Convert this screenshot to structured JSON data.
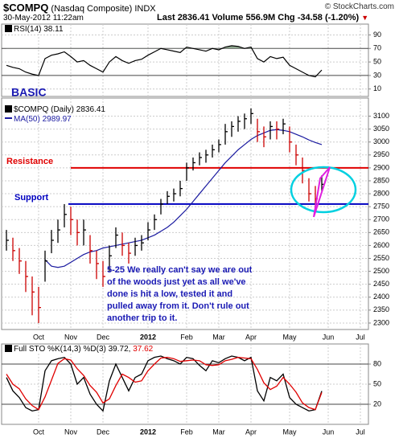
{
  "header": {
    "symbol": "$COMPQ",
    "name": "(Nasdaq Composite)",
    "exchange": "INDX",
    "date": "30-May-2012 11:22am",
    "last_label": "Last",
    "volume_label": "Volume",
    "volume": "556.9M",
    "chg_label": "Chg",
    "chg": "-34.58 (-1.20%)",
    "copyright": "© StockCharts.com"
  },
  "chart_data": [
    {
      "type": "rsi",
      "name": "RSI(14)",
      "color": "#000000",
      "fill_color": "#8fa88f",
      "values": [
        45,
        42,
        40,
        35,
        32,
        30,
        55,
        60,
        62,
        65,
        58,
        50,
        52,
        45,
        40,
        35,
        50,
        58,
        52,
        48,
        52,
        54,
        60,
        65,
        70,
        68,
        66,
        64,
        72,
        70,
        68,
        66,
        70,
        68,
        72,
        74,
        73,
        70,
        72,
        55,
        50,
        58,
        55,
        57,
        45,
        40,
        35,
        30,
        28,
        38.11,
        null,
        null,
        null,
        null,
        null,
        null
      ],
      "ylim": [
        -1,
        106
      ],
      "yticks": [
        90,
        70,
        50,
        30,
        10
      ],
      "overbought": 70,
      "oversold": 30
    },
    {
      "type": "ohlc",
      "title": "BASIC",
      "name": "$COMPQ (Daily)",
      "categories": [
        null,
        null,
        null,
        null,
        null,
        "Oct",
        null,
        null,
        null,
        null,
        "Nov",
        null,
        null,
        null,
        null,
        "Dec",
        null,
        null,
        null,
        null,
        null,
        null,
        "2012",
        null,
        null,
        null,
        null,
        null,
        "Feb",
        null,
        null,
        null,
        null,
        "Mar",
        null,
        null,
        null,
        null,
        "Apr",
        null,
        null,
        null,
        null,
        null,
        "May",
        null,
        null,
        null,
        null,
        null,
        "Jun",
        null,
        null,
        null,
        null,
        "Jul"
      ],
      "high": [
        2660,
        2630,
        2590,
        2540,
        2480,
        2440,
        2580,
        2660,
        2700,
        2760,
        2750,
        2700,
        2700,
        2640,
        2580,
        2540,
        2600,
        2670,
        2650,
        2610,
        2630,
        2640,
        2690,
        2720,
        2780,
        2810,
        2820,
        2850,
        2920,
        2940,
        2960,
        2970,
        2990,
        3010,
        3070,
        3080,
        3100,
        3110,
        3130,
        3090,
        3060,
        3080,
        3080,
        3090,
        3060,
        2990,
        2940,
        2860,
        2830,
        2871,
        null,
        null,
        null,
        null,
        null,
        null
      ],
      "low": [
        2580,
        2540,
        2490,
        2420,
        2330,
        2300,
        2460,
        2570,
        2610,
        2670,
        2640,
        2600,
        2600,
        2530,
        2470,
        2440,
        2500,
        2590,
        2560,
        2530,
        2560,
        2580,
        2620,
        2660,
        2720,
        2760,
        2770,
        2790,
        2850,
        2890,
        2910,
        2920,
        2940,
        2960,
        2990,
        3020,
        3040,
        3050,
        3070,
        3000,
        2980,
        3010,
        3010,
        3030,
        2960,
        2910,
        2840,
        2770,
        2750,
        2810,
        null,
        null,
        null,
        null,
        null,
        null
      ],
      "close": [
        2620,
        2580,
        2540,
        2480,
        2420,
        2360,
        2540,
        2620,
        2660,
        2720,
        2700,
        2650,
        2660,
        2580,
        2530,
        2480,
        2560,
        2640,
        2600,
        2570,
        2600,
        2610,
        2660,
        2700,
        2760,
        2790,
        2800,
        2820,
        2900,
        2920,
        2940,
        2950,
        2970,
        2990,
        3040,
        3060,
        3080,
        3090,
        3110,
        3040,
        3020,
        3060,
        3050,
        3070,
        3000,
        2950,
        2890,
        2800,
        2780,
        2836.41,
        null,
        null,
        null,
        null,
        null,
        null
      ],
      "up_color": "#000000",
      "down_color": "#cc0000",
      "ma": {
        "name": "MA(50)",
        "color": "#1a1aa0",
        "values": [
          null,
          null,
          null,
          null,
          null,
          null,
          2545,
          2520,
          2515,
          2520,
          2535,
          2550,
          2565,
          2575,
          2580,
          2590,
          2595,
          2600,
          2605,
          2610,
          2615,
          2620,
          2630,
          2640,
          2655,
          2670,
          2690,
          2715,
          2740,
          2770,
          2800,
          2830,
          2860,
          2890,
          2920,
          2945,
          2970,
          2990,
          3010,
          3025,
          3035,
          3045,
          3048,
          3045,
          3040,
          3030,
          3020,
          3008,
          2998,
          2989.97,
          null,
          null,
          null,
          null,
          null,
          null
        ]
      },
      "ylim": [
        2275,
        3170
      ],
      "yticks": [
        2300,
        2350,
        2400,
        2450,
        2500,
        2550,
        2600,
        2650,
        2700,
        2750,
        2800,
        2850,
        2900,
        2950,
        3000,
        3050,
        3100
      ],
      "grid": true,
      "levels": [
        {
          "name": "Resistance",
          "value": 2900,
          "color": "#e00000"
        },
        {
          "name": "Support",
          "value": 2760,
          "color": "#0000c0"
        }
      ],
      "annotation": "5-25 We really can't say we are out of the woods just yet as all we've done is hit a low, tested it and pulled away from it. Don't rule out another trip to it."
    },
    {
      "type": "line",
      "name": "Full STO %K(14,3) %D(3)",
      "categories": [
        null,
        null,
        null,
        null,
        null,
        "Oct",
        null,
        null,
        null,
        null,
        "Nov",
        null,
        null,
        null,
        null,
        "Dec",
        null,
        null,
        null,
        null,
        null,
        null,
        "2012",
        null,
        null,
        null,
        null,
        null,
        "Feb",
        null,
        null,
        null,
        null,
        "Mar",
        null,
        null,
        null,
        null,
        "Apr",
        null,
        null,
        null,
        null,
        null,
        "May",
        null,
        null,
        null,
        null,
        null,
        "Jun",
        null,
        null,
        null,
        null,
        "Jul"
      ],
      "series": [
        {
          "color": "#000000",
          "values": [
            60,
            40,
            30,
            15,
            10,
            12,
            70,
            85,
            88,
            90,
            80,
            50,
            60,
            35,
            20,
            10,
            55,
            80,
            60,
            40,
            60,
            65,
            85,
            90,
            92,
            88,
            85,
            80,
            90,
            88,
            78,
            70,
            85,
            82,
            88,
            92,
            90,
            85,
            90,
            40,
            25,
            60,
            55,
            65,
            30,
            20,
            15,
            10,
            12,
            39.72,
            null,
            null,
            null,
            null,
            null,
            null
          ]
        },
        {
          "color": "#e00000",
          "values": [
            65,
            50,
            43,
            28,
            18,
            12,
            31,
            56,
            81,
            88,
            86,
            73,
            63,
            48,
            38,
            22,
            28,
            48,
            65,
            60,
            53,
            55,
            70,
            80,
            89,
            90,
            88,
            84,
            85,
            86,
            85,
            79,
            78,
            79,
            85,
            87,
            90,
            89,
            88,
            72,
            52,
            42,
            47,
            60,
            50,
            38,
            22,
            15,
            12,
            37.62,
            null,
            null,
            null,
            null,
            null,
            null
          ]
        }
      ],
      "ylim": [
        -10,
        110
      ],
      "yticks": [
        80,
        50,
        20
      ],
      "overbought": 80,
      "oversold": 20
    }
  ]
}
